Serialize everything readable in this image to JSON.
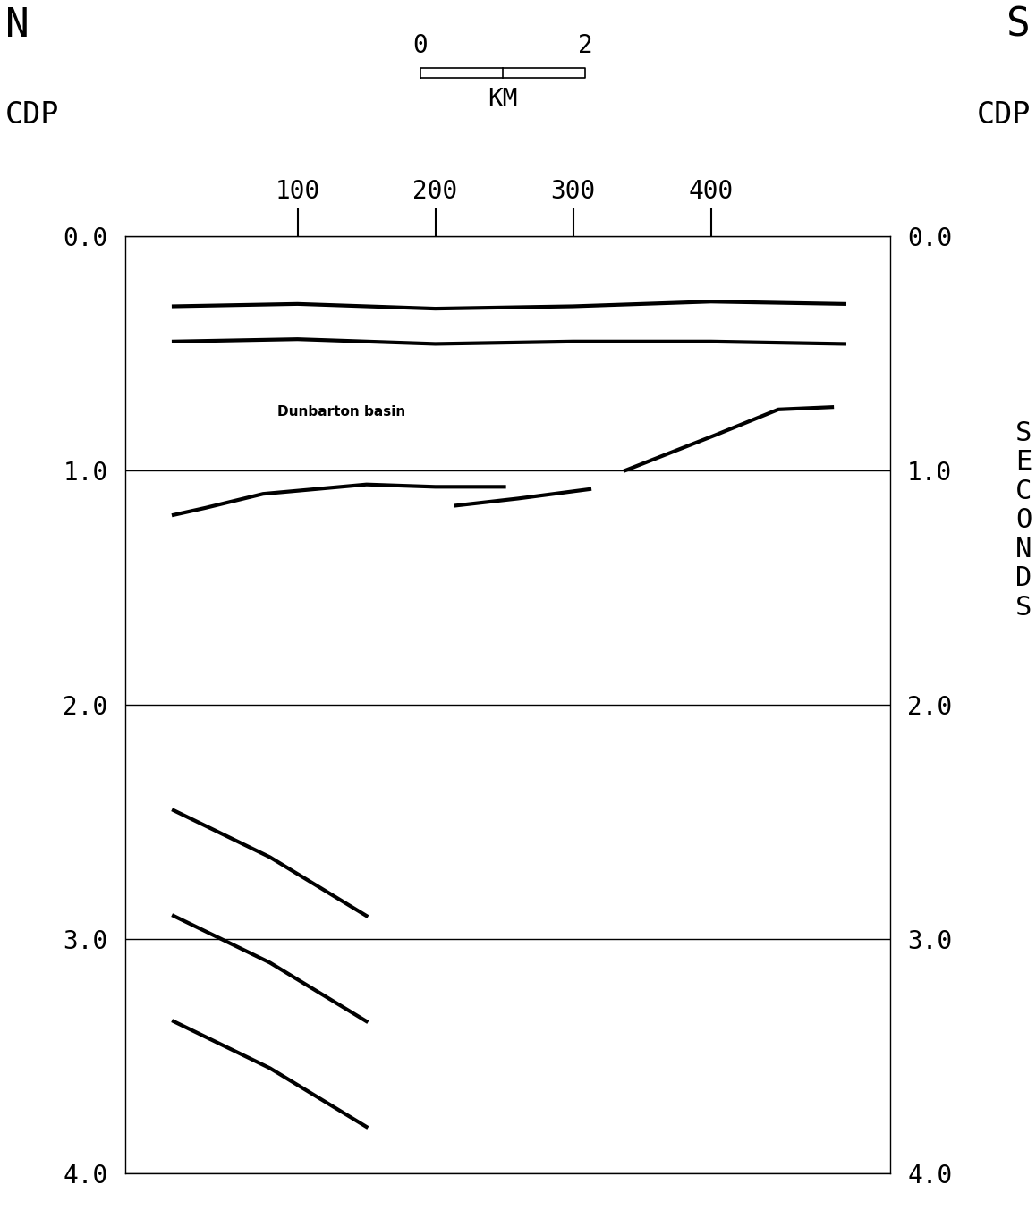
{
  "chart_data": {
    "type": "line",
    "left_label": "N",
    "right_label": "S",
    "xlabel": "CDP",
    "ylabel": "SECONDS",
    "xlim": [
      -25,
      530
    ],
    "ylim": [
      4.0,
      0.0
    ],
    "xticks": [
      100,
      200,
      300,
      400
    ],
    "yticks": [
      {
        "value": 0.0,
        "label": "0.0"
      },
      {
        "value": 1.0,
        "label": "1.0"
      },
      {
        "value": 2.0,
        "label": "2.0"
      },
      {
        "value": 3.0,
        "label": "3.0"
      },
      {
        "value": 4.0,
        "label": "4.0"
      }
    ],
    "grid": true,
    "scale_bar": {
      "start_cdp": 189,
      "cdp_per_km": 60,
      "values": [
        0,
        2
      ],
      "label": "KM"
    },
    "annotations": [
      {
        "text": "Dunbarton basin",
        "x": 132,
        "y": 0.75
      }
    ],
    "series": [
      {
        "color": "#000000",
        "x": [
          10,
          100,
          200,
          300,
          400,
          497
        ],
        "values": [
          0.3,
          0.29,
          0.31,
          0.3,
          0.28,
          0.29
        ]
      },
      {
        "color": "#000000",
        "x": [
          10,
          100,
          200,
          300,
          400,
          497
        ],
        "values": [
          0.45,
          0.44,
          0.46,
          0.45,
          0.45,
          0.46
        ]
      },
      {
        "color": "#000000",
        "x": [
          10,
          33,
          75,
          150,
          200,
          250
        ],
        "values": [
          1.19,
          1.16,
          1.1,
          1.06,
          1.07,
          1.07
        ]
      },
      {
        "color": "#000000",
        "x": [
          215,
          260,
          312
        ],
        "values": [
          1.15,
          1.12,
          1.08
        ]
      },
      {
        "color": "#000000",
        "x": [
          338,
          403,
          449,
          488
        ],
        "values": [
          1.0,
          0.85,
          0.74,
          0.73
        ]
      },
      {
        "color": "#000000",
        "x": [
          10,
          80,
          150
        ],
        "values": [
          2.45,
          2.65,
          2.9
        ]
      },
      {
        "color": "#000000",
        "x": [
          10,
          80,
          150
        ],
        "values": [
          2.9,
          3.1,
          3.35
        ]
      },
      {
        "color": "#000000",
        "x": [
          10,
          80,
          150
        ],
        "values": [
          3.35,
          3.55,
          3.8
        ]
      }
    ]
  }
}
